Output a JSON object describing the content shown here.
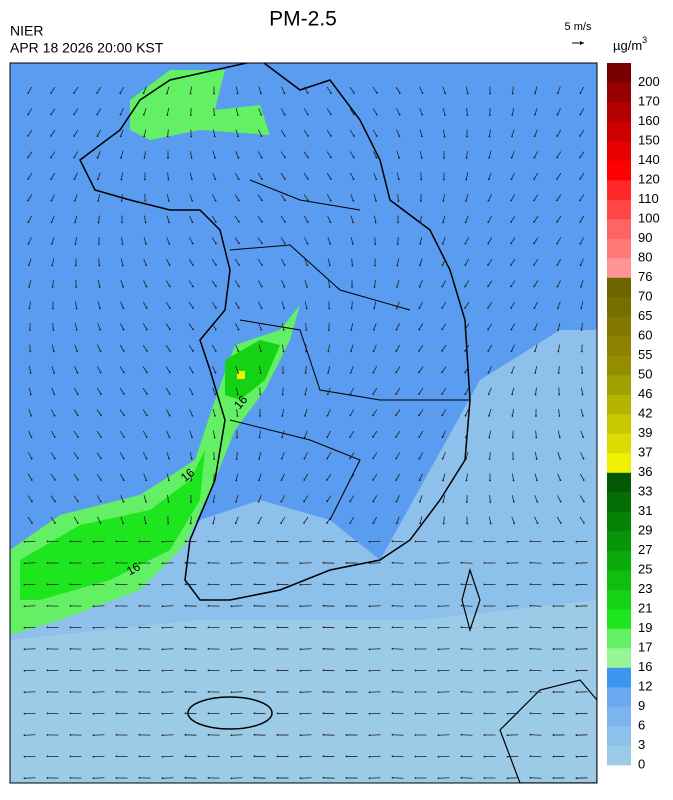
{
  "header": {
    "title": "PM-2.5",
    "agency": "NIER",
    "datetime": "APR 18 2026 20:00 KST"
  },
  "wind_scale": {
    "label": "5 m/s"
  },
  "map": {
    "contour_labels": [
      "16",
      "16",
      "16"
    ]
  },
  "legend": {
    "unit": "µg/m",
    "unit_sup": "3",
    "ticks": [
      0,
      3,
      6,
      9,
      12,
      16,
      17,
      19,
      21,
      23,
      25,
      27,
      29,
      31,
      33,
      36,
      37,
      39,
      42,
      46,
      50,
      55,
      60,
      65,
      70,
      76,
      80,
      90,
      100,
      110,
      120,
      140,
      150,
      160,
      170,
      200
    ],
    "colors": [
      "#9ccbe8",
      "#8ec0ec",
      "#7db4ee",
      "#6aa8ef",
      "#3c96f0",
      "#96f596",
      "#64f064",
      "#1ee61e",
      "#14d214",
      "#0fbe0f",
      "#0aaa0a",
      "#089608",
      "#068206",
      "#056e05",
      "#045a04",
      "#f0f000",
      "#dcdc00",
      "#c8c800",
      "#b4b400",
      "#a0a000",
      "#968c00",
      "#8c8200",
      "#827800",
      "#786e00",
      "#6e6400",
      "#ff9696",
      "#ff7878",
      "#ff6464",
      "#ff4646",
      "#ff2828",
      "#ff0000",
      "#e60000",
      "#cc0000",
      "#b40000",
      "#960000",
      "#780000"
    ]
  }
}
